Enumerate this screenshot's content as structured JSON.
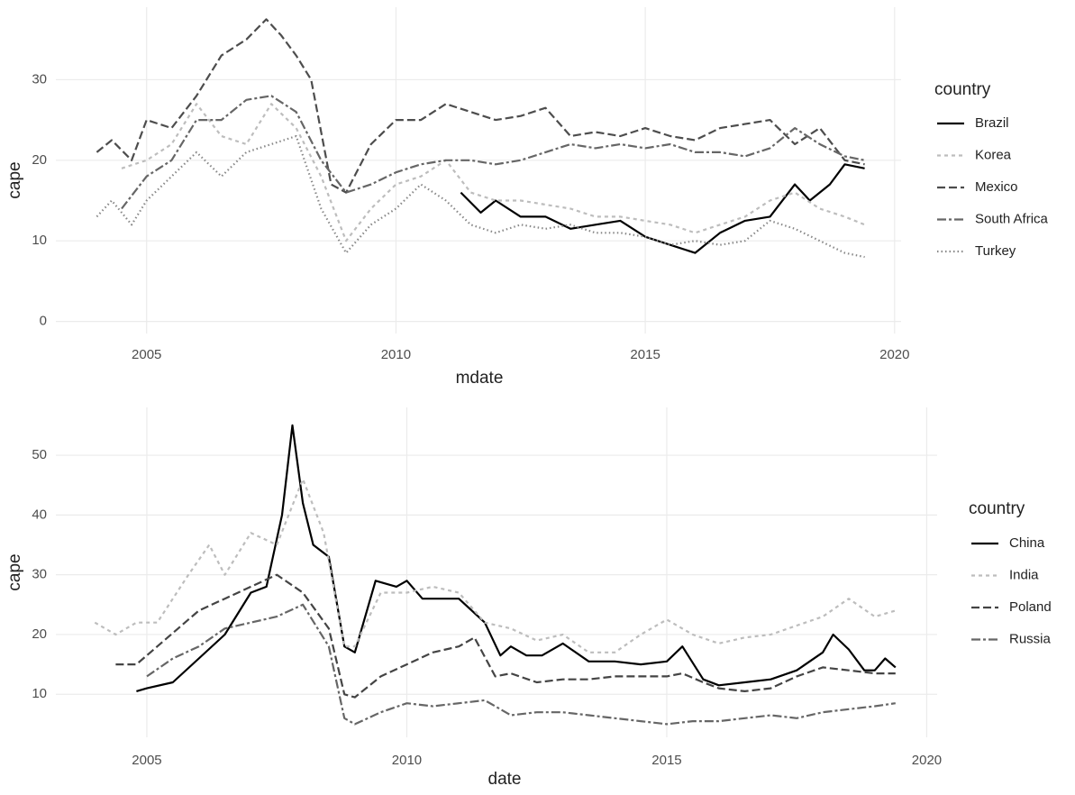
{
  "chart_data": [
    {
      "type": "line",
      "x_label": "mdate",
      "y_label": "cape",
      "legend_title": "country",
      "grid": true,
      "legend": "right",
      "xlim": [
        2003.18,
        2020.13
      ],
      "xticks": [
        2005,
        2010,
        2015,
        2020
      ],
      "ylim": [
        -1.5,
        39
      ],
      "yticks": [
        0,
        10,
        20,
        30
      ],
      "series": [
        {
          "name": "Brazil",
          "color": "#000000",
          "dash": "none",
          "x": [
            2011.3,
            2011.7,
            2012,
            2012.5,
            2013,
            2013.5,
            2014,
            2014.5,
            2015,
            2015.5,
            2016,
            2016.5,
            2017,
            2017.5,
            2018,
            2018.3,
            2018.7,
            2019,
            2019.4
          ],
          "values": [
            16,
            13.5,
            15,
            13,
            13,
            11.5,
            12,
            12.5,
            10.5,
            9.5,
            8.5,
            11,
            12.5,
            13,
            17,
            15,
            17,
            19.5,
            19
          ]
        },
        {
          "name": "Korea",
          "color": "#bdbdbd",
          "dash": "4,4",
          "x": [
            2004.5,
            2005,
            2005.5,
            2006,
            2006.5,
            2007,
            2007.5,
            2008,
            2008.5,
            2009,
            2009.5,
            2010,
            2010.5,
            2011,
            2011.5,
            2012,
            2012.5,
            2013,
            2013.5,
            2014,
            2014.5,
            2015,
            2015.5,
            2016,
            2016.5,
            2017,
            2017.5,
            2018,
            2018.5,
            2019,
            2019.4
          ],
          "values": [
            19,
            20,
            22,
            27,
            23,
            22,
            27,
            24,
            18,
            10,
            14,
            17,
            18,
            20,
            16,
            15,
            15,
            14.5,
            14,
            13,
            13,
            12.5,
            12,
            11,
            12,
            13,
            15,
            16,
            14,
            13,
            12
          ]
        },
        {
          "name": "Mexico",
          "color": "#4d4d4d",
          "dash": "9,4",
          "x": [
            2004,
            2004.3,
            2004.7,
            2005,
            2005.5,
            2006,
            2006.5,
            2007,
            2007.4,
            2007.7,
            2008,
            2008.3,
            2008.7,
            2009,
            2009.5,
            2010,
            2010.5,
            2011,
            2011.5,
            2012,
            2012.5,
            2013,
            2013.5,
            2014,
            2014.5,
            2015,
            2015.5,
            2016,
            2016.5,
            2017,
            2017.5,
            2018,
            2018.5,
            2019,
            2019.4
          ],
          "values": [
            21,
            22.5,
            20,
            25,
            24,
            28,
            33,
            35,
            37.5,
            35.5,
            33,
            30,
            17,
            16,
            22,
            25,
            25,
            27,
            26,
            25,
            25.5,
            26.5,
            23,
            23.5,
            23,
            24,
            23,
            22.5,
            24,
            24.5,
            25,
            22,
            24,
            20,
            19.5
          ]
        },
        {
          "name": "South Africa",
          "color": "#666666",
          "dash": "10,3,3,3",
          "x": [
            2004.5,
            2005,
            2005.5,
            2006,
            2006.5,
            2007,
            2007.5,
            2008,
            2008.5,
            2009,
            2009.5,
            2010,
            2010.5,
            2011,
            2011.5,
            2012,
            2012.5,
            2013,
            2013.5,
            2014,
            2014.5,
            2015,
            2015.5,
            2016,
            2016.5,
            2017,
            2017.5,
            2018,
            2018.5,
            2019,
            2019.4
          ],
          "values": [
            14,
            18,
            20,
            25,
            25,
            27.5,
            28,
            26,
            20,
            16,
            17,
            18.5,
            19.5,
            20,
            20,
            19.5,
            20,
            21,
            22,
            21.5,
            22,
            21.5,
            22,
            21,
            21,
            20.5,
            21.5,
            24,
            22,
            20.5,
            20
          ]
        },
        {
          "name": "Turkey",
          "color": "#888888",
          "dash": "1.5,3",
          "x": [
            2004,
            2004.3,
            2004.7,
            2005,
            2005.5,
            2006,
            2006.5,
            2007,
            2007.5,
            2008,
            2008.5,
            2009,
            2009.5,
            2010,
            2010.5,
            2011,
            2011.5,
            2012,
            2012.5,
            2013,
            2013.5,
            2014,
            2014.5,
            2015,
            2015.5,
            2016,
            2016.5,
            2017,
            2017.5,
            2018,
            2018.5,
            2019,
            2019.4
          ],
          "values": [
            13,
            15,
            12,
            15,
            18,
            21,
            18,
            21,
            22,
            23,
            14,
            8.5,
            12,
            14,
            17,
            15,
            12,
            11,
            12,
            11.5,
            12,
            11,
            11,
            10.5,
            9.5,
            10,
            9.5,
            10,
            12.5,
            11.5,
            10,
            8.5,
            8
          ]
        }
      ]
    },
    {
      "type": "line",
      "x_label": "date",
      "y_label": "cape",
      "legend_title": "country",
      "grid": true,
      "legend": "right",
      "xlim": [
        2003.25,
        2020.2
      ],
      "xticks": [
        2005,
        2010,
        2015,
        2020
      ],
      "ylim": [
        2.8,
        58
      ],
      "yticks": [
        10,
        20,
        30,
        40,
        50
      ],
      "series": [
        {
          "name": "China",
          "color": "#000000",
          "dash": "none",
          "x": [
            2004.8,
            2005,
            2005.5,
            2006,
            2006.5,
            2007,
            2007.3,
            2007.6,
            2007.8,
            2008,
            2008.2,
            2008.5,
            2008.8,
            2009,
            2009.4,
            2009.8,
            2010,
            2010.3,
            2010.8,
            2011,
            2011.5,
            2011.8,
            2012,
            2012.3,
            2012.6,
            2013,
            2013.5,
            2014,
            2014.5,
            2015,
            2015.3,
            2015.7,
            2016,
            2016.5,
            2017,
            2017.5,
            2018,
            2018.2,
            2018.5,
            2018.8,
            2019,
            2019.2,
            2019.4
          ],
          "values": [
            10.5,
            11,
            12,
            16,
            20,
            27,
            28,
            40,
            55,
            42,
            35,
            33,
            18,
            17,
            29,
            28,
            29,
            26,
            26,
            26,
            22,
            16.5,
            18,
            16.5,
            16.5,
            18.5,
            15.5,
            15.5,
            15,
            15.5,
            18,
            12.5,
            11.5,
            12,
            12.5,
            14,
            17,
            20,
            17.5,
            14,
            14,
            16,
            14.5
          ]
        },
        {
          "name": "India",
          "color": "#bdbdbd",
          "dash": "4,4",
          "x": [
            2004,
            2004.4,
            2004.8,
            2005.2,
            2005.8,
            2006.2,
            2006.5,
            2007,
            2007.5,
            2008,
            2008.4,
            2008.8,
            2009,
            2009.5,
            2010,
            2010.5,
            2011,
            2011.5,
            2012,
            2012.5,
            2013,
            2013.5,
            2014,
            2014.5,
            2015,
            2015.5,
            2016,
            2016.5,
            2017,
            2017.5,
            2018,
            2018.5,
            2019,
            2019.4
          ],
          "values": [
            22,
            20,
            22,
            22,
            30,
            35,
            30,
            37,
            35,
            46,
            37,
            18,
            18,
            27,
            27,
            28,
            27,
            22,
            21,
            19,
            20,
            17,
            17,
            20,
            22.5,
            20,
            18.5,
            19.5,
            20,
            21.5,
            23,
            26,
            23,
            24
          ]
        },
        {
          "name": "Poland",
          "color": "#444444",
          "dash": "9,4",
          "x": [
            2004.4,
            2004.8,
            2005.2,
            2005.6,
            2006,
            2006.5,
            2007,
            2007.5,
            2008,
            2008.5,
            2008.8,
            2009,
            2009.5,
            2010,
            2010.5,
            2011,
            2011.3,
            2011.7,
            2012,
            2012.5,
            2013,
            2013.5,
            2014,
            2014.5,
            2015,
            2015.3,
            2015.7,
            2016,
            2016.5,
            2017,
            2017.5,
            2018,
            2018.5,
            2019,
            2019.4
          ],
          "values": [
            15,
            15,
            18,
            21,
            24,
            26,
            28,
            30,
            27,
            21,
            10,
            9.5,
            13,
            15,
            17,
            18,
            19.5,
            13,
            13.5,
            12,
            12.5,
            12.5,
            13,
            13,
            13,
            13.5,
            12,
            11,
            10.5,
            11,
            13,
            14.5,
            14,
            13.5,
            13.5
          ]
        },
        {
          "name": "Russia",
          "color": "#666666",
          "dash": "10,3,3,3",
          "x": [
            2005,
            2005.5,
            2006,
            2006.5,
            2007,
            2007.5,
            2008,
            2008.5,
            2008.8,
            2009,
            2009.5,
            2010,
            2010.5,
            2011,
            2011.5,
            2012,
            2012.5,
            2013,
            2013.5,
            2014,
            2014.5,
            2015,
            2015.5,
            2016,
            2016.5,
            2017,
            2017.5,
            2018,
            2018.5,
            2019,
            2019.4
          ],
          "values": [
            13,
            16,
            18,
            21,
            22,
            23,
            25,
            18,
            6,
            5,
            7,
            8.5,
            8,
            8.5,
            9,
            6.5,
            7,
            7,
            6.5,
            6,
            5.5,
            5,
            5.5,
            5.5,
            6,
            6.5,
            6,
            7,
            7.5,
            8,
            8.5
          ]
        }
      ]
    }
  ]
}
